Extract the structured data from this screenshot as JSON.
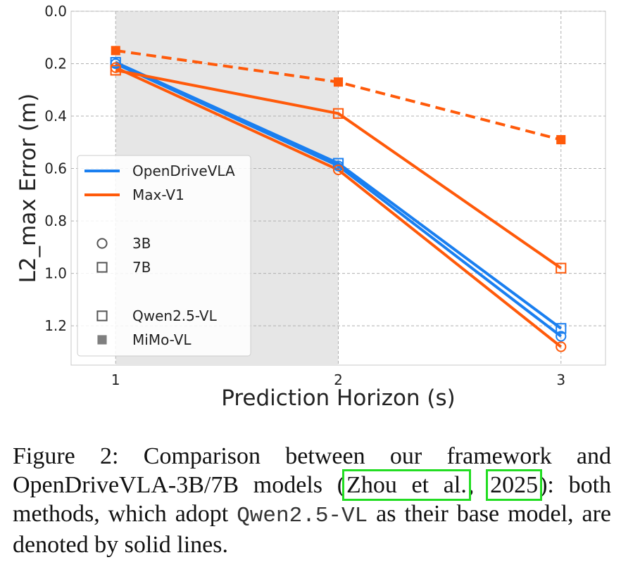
{
  "chart_data": {
    "type": "line",
    "xlabel": "Prediction Horizon (s)",
    "ylabel": "L2_max Error (m)",
    "x": [
      1,
      2,
      3
    ],
    "x_ticks": [
      "1",
      "2",
      "3"
    ],
    "xlim": [
      0.8,
      3.2
    ],
    "ylim": [
      1.35,
      0.0
    ],
    "y_ticks": [
      "0.0",
      "0.2",
      "0.4",
      "0.6",
      "0.8",
      "1.0",
      "1.2"
    ],
    "y_inverted": true,
    "grid": true,
    "shaded_x_range": [
      1,
      2
    ],
    "series": [
      {
        "name": "OpenDriveVLA 3B",
        "method": "OpenDriveVLA",
        "size": "3B",
        "base": "Qwen2.5-VL",
        "color": "#1a7ff0",
        "marker": "circle",
        "dashed": false,
        "values": [
          0.2,
          0.59,
          1.24
        ]
      },
      {
        "name": "OpenDriveVLA 7B",
        "method": "OpenDriveVLA",
        "size": "7B",
        "base": "Qwen2.5-VL",
        "color": "#1a7ff0",
        "marker": "square",
        "dashed": false,
        "values": [
          0.195,
          0.58,
          1.21
        ]
      },
      {
        "name": "Max-V1 3B (Qwen2.5-VL)",
        "method": "Max-V1",
        "size": "3B",
        "base": "Qwen2.5-VL",
        "color": "#ff5a0a",
        "marker": "circle",
        "dashed": false,
        "values": [
          0.215,
          0.605,
          1.28
        ]
      },
      {
        "name": "Max-V1 7B (Qwen2.5-VL)",
        "method": "Max-V1",
        "size": "7B",
        "base": "Qwen2.5-VL",
        "color": "#ff5a0a",
        "marker": "square",
        "dashed": false,
        "values": [
          0.225,
          0.39,
          0.98
        ]
      },
      {
        "name": "Max-V1 (MiMo-VL)",
        "method": "Max-V1",
        "size": "7B",
        "base": "MiMo-VL",
        "color": "#ff5a0a",
        "marker": "square-filled",
        "dashed": true,
        "values": [
          0.15,
          0.27,
          0.49
        ]
      }
    ],
    "legend": {
      "placement": "center-left",
      "lines": [
        {
          "label": "OpenDriveVLA",
          "color": "#1a7ff0"
        },
        {
          "label": "Max-V1",
          "color": "#ff5a0a"
        }
      ],
      "sizes": [
        {
          "label": "3B",
          "marker": "circle"
        },
        {
          "label": "7B",
          "marker": "square"
        }
      ],
      "bases": [
        {
          "label": "Qwen2.5-VL",
          "marker": "square"
        },
        {
          "label": "MiMo-VL",
          "marker": "square-filled"
        }
      ]
    }
  },
  "caption": {
    "part1": "Figure 2: Comparison between our framework and OpenDriveVLA-3B/7B models (",
    "cite_author": "Zhou et al.",
    "sep": ", ",
    "cite_year": "2025",
    "part2": "): both methods, which adopt ",
    "code": "Qwen2.5-VL",
    "part3": " as their base model, are denoted by solid lines."
  }
}
